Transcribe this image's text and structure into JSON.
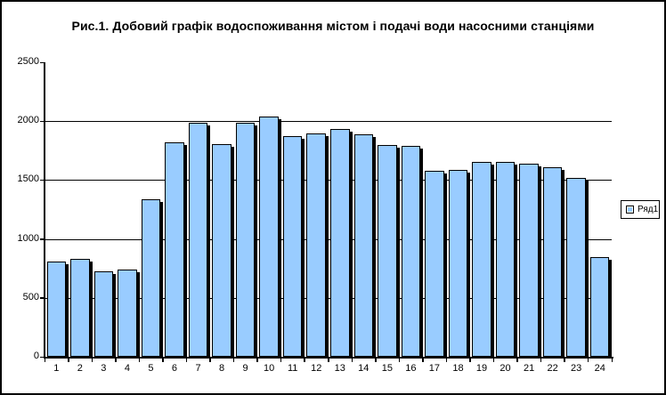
{
  "title": "Рис.1. Добовий графік водоспоживання містом і подачі води насосними станціями",
  "legend": {
    "label": "Ряд1"
  },
  "colors": {
    "bar_fill": "#99CCFF",
    "bar_border": "#000000",
    "background": "#FFFFFF",
    "frame": "#000000",
    "gridline": "#000000"
  },
  "chart_data": {
    "type": "bar",
    "title": "Рис.1. Добовий графік водоспоживання містом і подачі води насосними станціями",
    "categories": [
      "1",
      "2",
      "3",
      "4",
      "5",
      "6",
      "7",
      "8",
      "9",
      "10",
      "11",
      "12",
      "13",
      "14",
      "15",
      "16",
      "17",
      "18",
      "19",
      "20",
      "21",
      "22",
      "23",
      "24"
    ],
    "series": [
      {
        "name": "Ряд1",
        "values": [
          805,
          830,
          725,
          740,
          1340,
          1820,
          1985,
          1805,
          1990,
          2040,
          1870,
          1895,
          1930,
          1890,
          1800,
          1790,
          1575,
          1585,
          1655,
          1655,
          1640,
          1605,
          1520,
          845
        ]
      }
    ],
    "xlabel": "",
    "ylabel": "",
    "ylim": [
      0,
      2500
    ],
    "yticks": [
      0,
      500,
      1000,
      1500,
      2000,
      2500
    ],
    "grid": true,
    "legend_position": "right"
  }
}
